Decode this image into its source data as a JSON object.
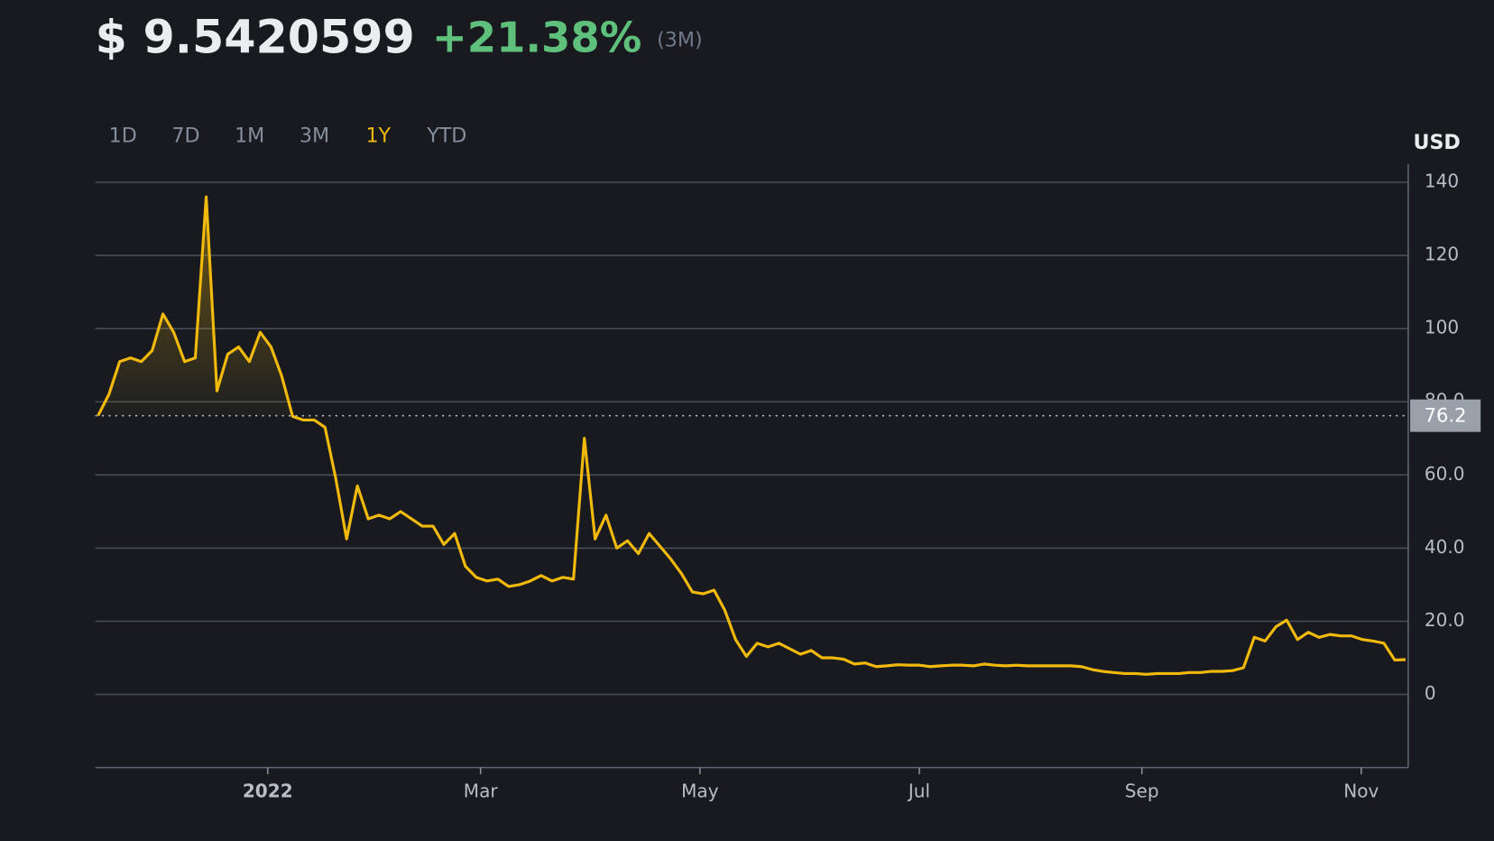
{
  "header": {
    "price": "$ 9.5420599",
    "change": "+21.38%",
    "period": "(3M)"
  },
  "tabs": [
    "1D",
    "7D",
    "1M",
    "3M",
    "1Y",
    "YTD"
  ],
  "active_tab": 4,
  "chart_data": {
    "type": "line",
    "unit_label": "USD",
    "color": "#f0b90b",
    "values": [
      76.2,
      82,
      91,
      92,
      91,
      94,
      104,
      99,
      91,
      92,
      136,
      83,
      93,
      95,
      91,
      99,
      95,
      87,
      76,
      75,
      75,
      73,
      59,
      42.5,
      57,
      48,
      49,
      48,
      50,
      48,
      46,
      46,
      41,
      44,
      35,
      32,
      31,
      31.5,
      29.5,
      30,
      31,
      32.5,
      31,
      32,
      31.5,
      70,
      42.5,
      49,
      40,
      42,
      38.5,
      44,
      40.5,
      37,
      33,
      28,
      27.5,
      28.5,
      23,
      15,
      10.4,
      14,
      13,
      14,
      12.5,
      11,
      12,
      10,
      10,
      9.6,
      8.3,
      8.6,
      7.6,
      7.8,
      8.1,
      8,
      8,
      7.6,
      7.8,
      8,
      8,
      7.8,
      8.3,
      8,
      7.8,
      8,
      7.8,
      7.8,
      7.8,
      7.8,
      7.8,
      7.6,
      6.8,
      6.3,
      6,
      5.7,
      5.7,
      5.5,
      5.7,
      5.7,
      5.7,
      6,
      6,
      6.3,
      6.3,
      6.5,
      7.3,
      15.6,
      14.6,
      18.5,
      20.3,
      15,
      17,
      15.6,
      16.4,
      16,
      16,
      15,
      14.6,
      14,
      9.4,
      9.5
    ],
    "reference_value": 76.2,
    "xlim": [
      -0.26,
      121.25
    ],
    "xticks": [
      {
        "value": 15.7,
        "label": "2022"
      },
      {
        "value": 35.4,
        "label": "Mar"
      },
      {
        "value": 55.7,
        "label": "May"
      },
      {
        "value": 76.0,
        "label": "Jul"
      },
      {
        "value": 96.6,
        "label": "Sep"
      },
      {
        "value": 116.9,
        "label": "Nov"
      }
    ],
    "ylim": [
      -20,
      145
    ],
    "yticks": [
      0,
      {
        "value": 20,
        "label": "20.0"
      },
      {
        "value": 40,
        "label": "40.0"
      },
      {
        "value": 60,
        "label": "60.0"
      },
      {
        "value": 80,
        "label": "80.0"
      },
      100,
      120,
      140
    ],
    "grid": true
  }
}
